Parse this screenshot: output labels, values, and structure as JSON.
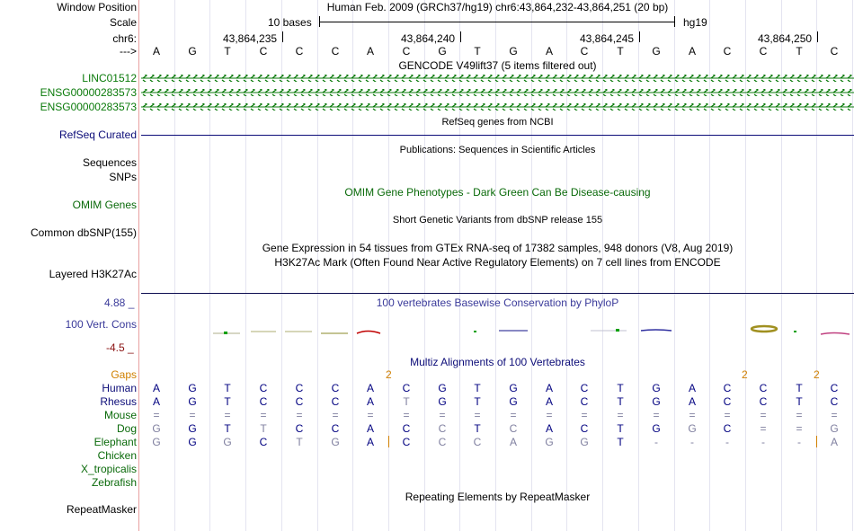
{
  "header": {
    "window_position_label": "Window Position",
    "scale_label": "Scale",
    "chrom_label": "chr6:",
    "arrow_label": "--->",
    "assembly_text": "Human Feb. 2009 (GRCh37/hg19)   chr6:43,864,232-43,864,251 (20 bp)",
    "scale_text": "10 bases",
    "scale_db": "hg19",
    "positions": [
      "43,864,235",
      "43,864,240",
      "43,864,245",
      "43,864,250"
    ]
  },
  "sequence": [
    "A",
    "G",
    "T",
    "C",
    "C",
    "C",
    "A",
    "C",
    "G",
    "T",
    "G",
    "A",
    "C",
    "T",
    "G",
    "A",
    "C",
    "C",
    "T",
    "C"
  ],
  "tracks": {
    "gencode_title": "GENCODE V49lift37 (5 items filtered out)",
    "gencode_items": [
      "LINC01512",
      "ENSG00000283573",
      "ENSG00000283573"
    ],
    "refseq_title": "RefSeq genes from NCBI",
    "refseq_label": "RefSeq Curated",
    "publications_title": "Publications: Sequences in Scientific Articles",
    "sequences_label": "Sequences",
    "snps_label": "SNPs",
    "omim_title": "OMIM Gene Phenotypes - Dark Green Can Be Disease-causing",
    "omim_label": "OMIM Genes",
    "dbsnp_title": "Short Genetic Variants from dbSNP release 155",
    "dbsnp_label": "Common dbSNP(155)",
    "gtex_title": "Gene Expression in 54 tissues from GTEx RNA-seq of 17382 samples, 948 donors (V8, Aug 2019)",
    "h3k27_title": "H3K27Ac Mark (Often Found Near Active Regulatory Elements) on 7 cell lines from ENCODE",
    "h3k27_label": "Layered H3K27Ac",
    "phylop_title": "100 vertebrates Basewise Conservation by PhyloP",
    "phylop_label": "100 Vert. Cons",
    "phylop_max": "4.88 _",
    "phylop_min": "-4.5 _",
    "multiz_title": "Multiz Alignments of 100 Vertebrates",
    "gaps_label": "Gaps",
    "repeat_title": "Repeating Elements by RepeatMasker",
    "repeat_label": "RepeatMasker"
  },
  "gaps": [
    "2",
    "2",
    "2"
  ],
  "species": [
    {
      "name": "Human",
      "bases": [
        "A",
        "G",
        "T",
        "C",
        "C",
        "C",
        "A",
        "C",
        "G",
        "T",
        "G",
        "A",
        "C",
        "T",
        "G",
        "A",
        "C",
        "C",
        "T",
        "C"
      ]
    },
    {
      "name": "Rhesus",
      "bases": [
        "A",
        "G",
        "T",
        "C",
        "C",
        "C",
        "A",
        "T",
        "G",
        "T",
        "G",
        "A",
        "C",
        "T",
        "G",
        "A",
        "C",
        "C",
        "T",
        "C"
      ]
    },
    {
      "name": "Mouse",
      "bases": [
        "=",
        "=",
        "=",
        "=",
        "=",
        "=",
        "=",
        "=",
        "=",
        "=",
        "=",
        "=",
        "=",
        "=",
        "=",
        "=",
        "=",
        "=",
        "=",
        "="
      ]
    },
    {
      "name": "Dog",
      "bases": [
        "G",
        "G",
        "T",
        "T",
        "C",
        "C",
        "A",
        "C",
        "C",
        "T",
        "C",
        "A",
        "C",
        "T",
        "G",
        "G",
        "C",
        "=",
        "=",
        "G"
      ]
    },
    {
      "name": "Elephant",
      "bases": [
        "G",
        "G",
        "G",
        "C",
        "T",
        "G",
        "A",
        "C",
        "C",
        "C",
        "A",
        "G",
        "G",
        "T",
        "-",
        "-",
        "-",
        "-",
        "-",
        "A"
      ]
    },
    {
      "name": "Chicken",
      "bases": []
    },
    {
      "name": "X_tropicalis",
      "bases": []
    },
    {
      "name": "Zebrafish",
      "bases": []
    }
  ],
  "colors": {
    "gene_green": "#0a7a0a",
    "omim_green": "#0a6a0a",
    "refseq_navy": "#0c0c78",
    "phylop_blue": "#3a3a9a",
    "phylop_red": "#8a1010",
    "gap_orange": "#d08000",
    "match": "#000080",
    "mismatch": "#8080a0"
  }
}
